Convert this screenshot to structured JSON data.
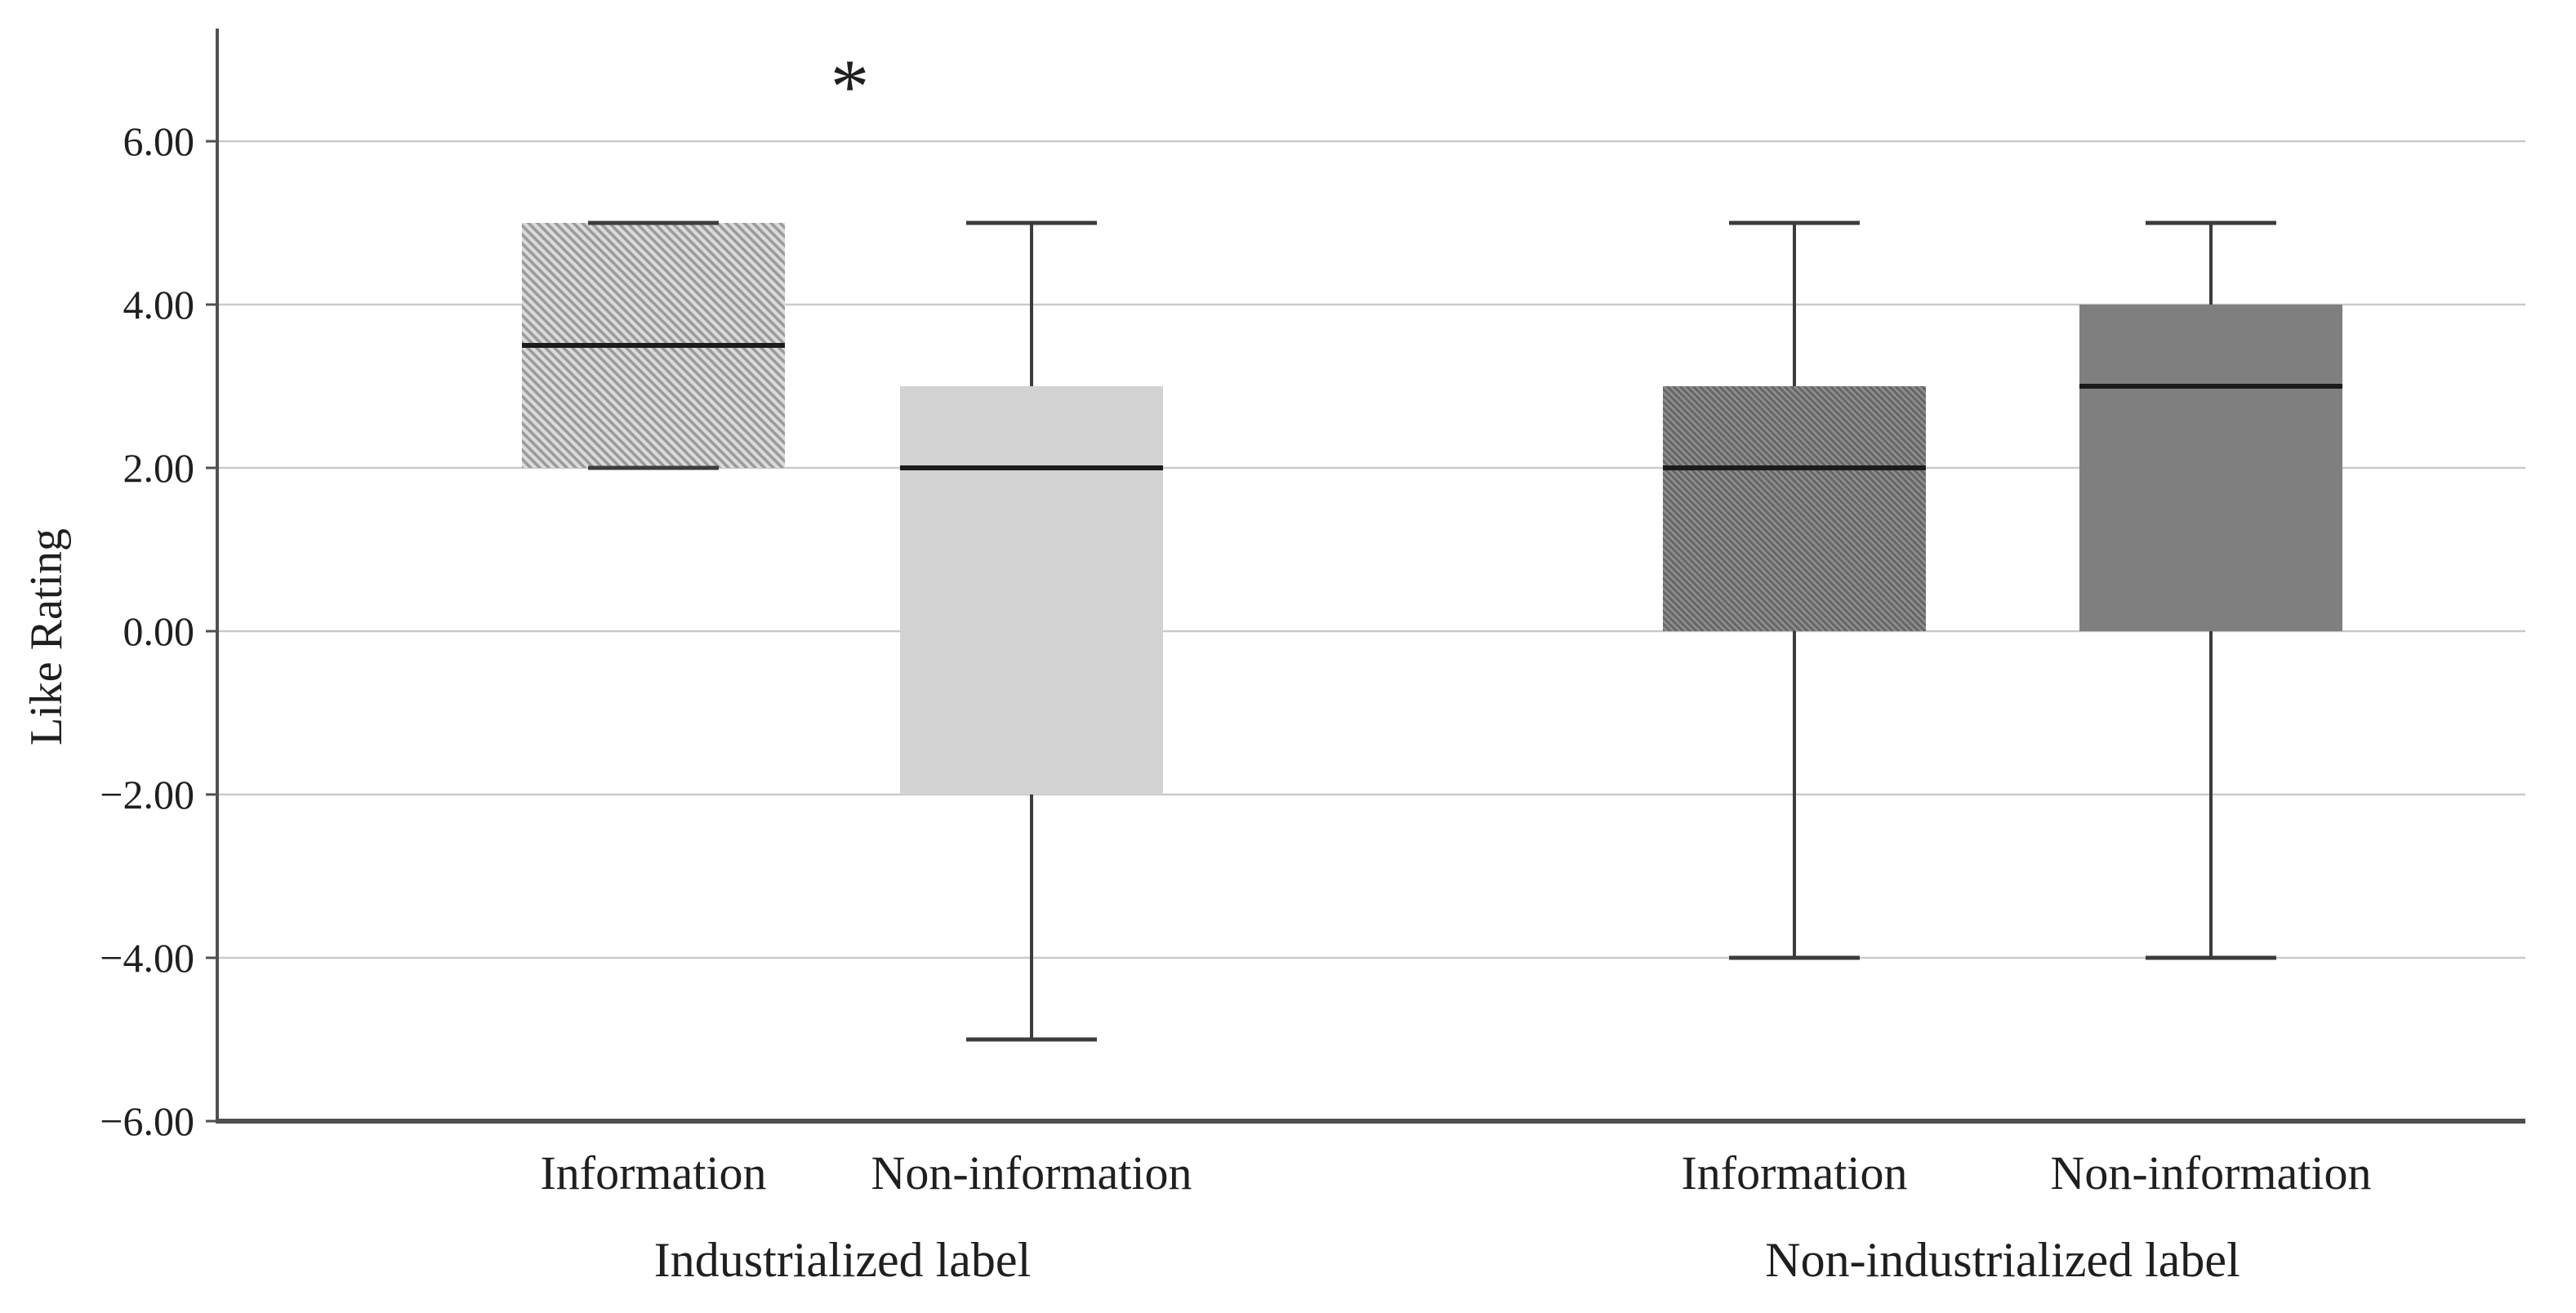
{
  "chart_data": {
    "type": "box",
    "title": "",
    "xlabel": "",
    "ylabel": "Like Rating",
    "ylim": [
      -6,
      6
    ],
    "grid": "horizontal",
    "legend": "none",
    "yticks": [
      {
        "label": "6.00",
        "value": 6
      },
      {
        "label": "4.00",
        "value": 4
      },
      {
        "label": "2.00",
        "value": 2
      },
      {
        "label": "0.00",
        "value": 0
      },
      {
        "label": "−2.00",
        "value": -2
      },
      {
        "label": "−4.00",
        "value": -4
      },
      {
        "label": "−6.00",
        "value": -6
      }
    ],
    "groups": [
      {
        "label": "Industrialized label",
        "boxes": [
          {
            "category": "Information",
            "median": 3.5,
            "q1": 2.0,
            "q3": 5.0,
            "whisker_min": 2.0,
            "whisker_max": 5.0,
            "tone": "light",
            "pattern": "diagonal-hatch"
          },
          {
            "category": "Non-information",
            "median": 2.0,
            "q1": -2.0,
            "q3": 3.0,
            "whisker_min": -5.0,
            "whisker_max": 5.0,
            "tone": "light",
            "pattern": "solid"
          }
        ]
      },
      {
        "label": "Non-industrialized label",
        "boxes": [
          {
            "category": "Information",
            "median": 2.0,
            "q1": 0.0,
            "q3": 3.0,
            "whisker_min": -4.0,
            "whisker_max": 5.0,
            "tone": "dark",
            "pattern": "diagonal-hatch"
          },
          {
            "category": "Non-information",
            "median": 3.0,
            "q1": 0.0,
            "q3": 4.0,
            "whisker_min": -4.0,
            "whisker_max": 5.0,
            "tone": "dark",
            "pattern": "solid"
          }
        ]
      }
    ],
    "significance": {
      "text": "*",
      "note": "marker above the Industrialized label pair"
    },
    "colors": {
      "background": "#ffffff",
      "light_gray": "#d2d2d2",
      "dark_gray": "#7f7f7f",
      "light_hatch_bg": "#dadada",
      "light_hatch_stroke": "#9a9a9a",
      "dark_hatch_bg": "#8e8e8e",
      "dark_hatch_stroke": "#666666",
      "gridline": "#c9c9c9",
      "axis": "#4f4f4f",
      "whisker": "#3c3c3c",
      "median": "#1b1b1b",
      "text": "#1f1f1f"
    }
  }
}
